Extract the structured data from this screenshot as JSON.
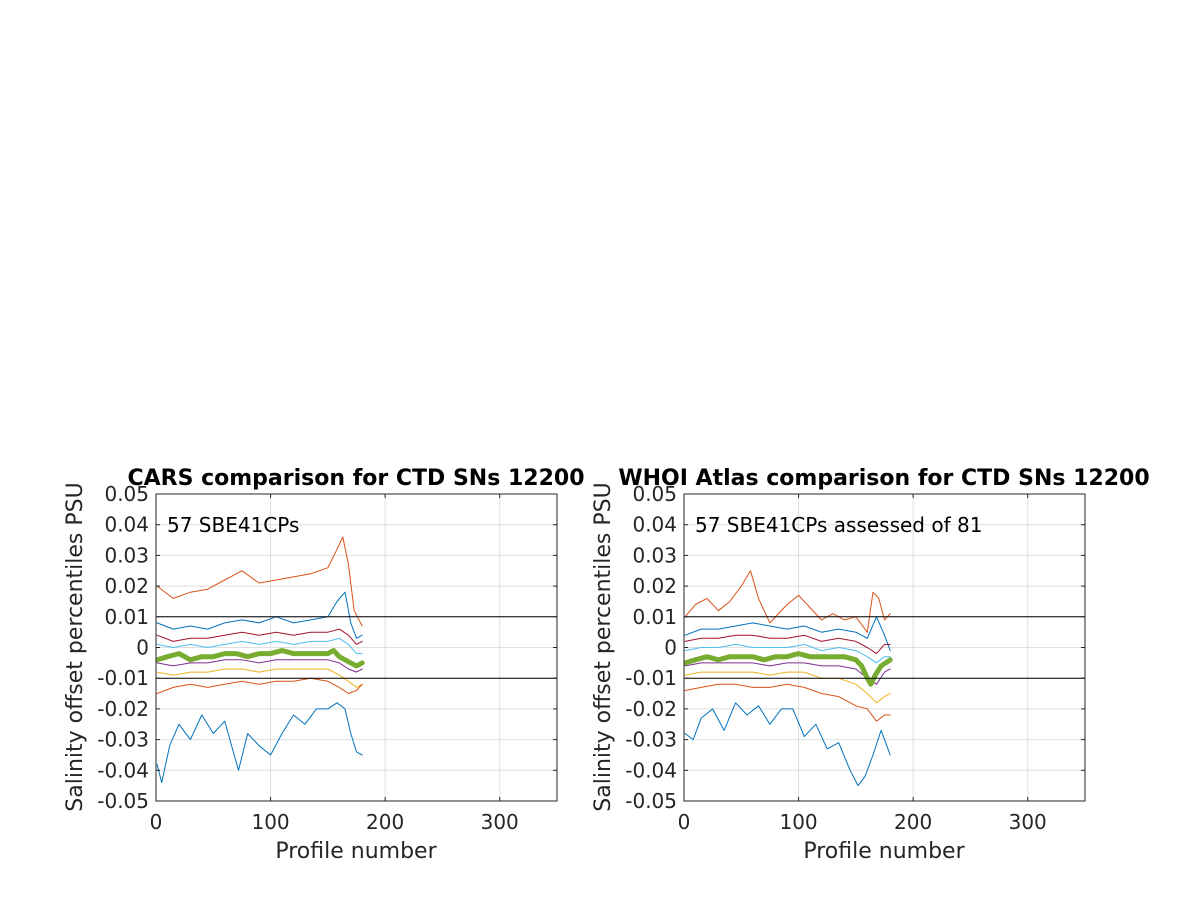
{
  "chart_data": [
    {
      "type": "line",
      "title": "CARS comparison for CTD SNs 12200",
      "xlabel": "Profile number",
      "ylabel": "Salinity offset percentiles PSU",
      "annotation": "57 SBE41CPs",
      "xlim": [
        0,
        350
      ],
      "ylim": [
        -0.05,
        0.05
      ],
      "xticks": [
        0,
        100,
        200,
        300
      ],
      "yticks": [
        -0.05,
        -0.04,
        -0.03,
        -0.02,
        -0.01,
        0,
        0.01,
        0.02,
        0.03,
        0.04,
        0.05
      ],
      "xtick_labels": [
        "0",
        "100",
        "200",
        "300"
      ],
      "ytick_labels": [
        "-0.05",
        "-0.04",
        "-0.03",
        "-0.02",
        "-0.01",
        "0",
        "0.01",
        "0.02",
        "0.03",
        "0.04",
        "0.05"
      ],
      "grid": true,
      "reference_lines": [
        0.01,
        -0.01
      ],
      "series": [
        {
          "color": "#D95319",
          "width": 1,
          "x": [
            1,
            15,
            30,
            45,
            60,
            75,
            90,
            105,
            120,
            135,
            150,
            158,
            163,
            168,
            173,
            180
          ],
          "y": [
            0.02,
            0.016,
            0.018,
            0.019,
            0.022,
            0.025,
            0.021,
            0.022,
            0.023,
            0.024,
            0.026,
            0.032,
            0.036,
            0.027,
            0.012,
            0.007
          ]
        },
        {
          "color": "#0072BD",
          "width": 1,
          "x": [
            1,
            15,
            30,
            45,
            60,
            75,
            90,
            105,
            120,
            135,
            150,
            158,
            165,
            170,
            175,
            180
          ],
          "y": [
            0.008,
            0.006,
            0.007,
            0.006,
            0.008,
            0.009,
            0.008,
            0.01,
            0.008,
            0.009,
            0.01,
            0.015,
            0.018,
            0.008,
            0.003,
            0.004
          ]
        },
        {
          "color": "#A2142F",
          "width": 1,
          "x": [
            1,
            15,
            30,
            45,
            60,
            75,
            90,
            105,
            120,
            135,
            150,
            160,
            168,
            175,
            180
          ],
          "y": [
            0.004,
            0.002,
            0.003,
            0.003,
            0.004,
            0.005,
            0.004,
            0.005,
            0.004,
            0.005,
            0.005,
            0.006,
            0.004,
            0.001,
            0.002
          ]
        },
        {
          "color": "#4DBEEE",
          "width": 1,
          "x": [
            1,
            15,
            30,
            45,
            60,
            75,
            90,
            105,
            120,
            135,
            150,
            160,
            168,
            175,
            180
          ],
          "y": [
            0.001,
            0.0,
            0.001,
            0.0,
            0.001,
            0.002,
            0.001,
            0.002,
            0.001,
            0.002,
            0.002,
            0.003,
            0.001,
            -0.002,
            -0.002
          ]
        },
        {
          "color": "#7E2F8E",
          "width": 1,
          "x": [
            1,
            15,
            30,
            45,
            60,
            75,
            90,
            105,
            120,
            135,
            150,
            160,
            168,
            175,
            180
          ],
          "y": [
            -0.005,
            -0.006,
            -0.005,
            -0.005,
            -0.004,
            -0.004,
            -0.005,
            -0.004,
            -0.004,
            -0.004,
            -0.004,
            -0.005,
            -0.007,
            -0.008,
            -0.007
          ]
        },
        {
          "color": "#EDB120",
          "width": 1,
          "x": [
            1,
            15,
            30,
            45,
            60,
            75,
            90,
            105,
            120,
            135,
            150,
            160,
            168,
            175,
            180
          ],
          "y": [
            -0.008,
            -0.009,
            -0.008,
            -0.008,
            -0.007,
            -0.007,
            -0.008,
            -0.007,
            -0.007,
            -0.007,
            -0.007,
            -0.009,
            -0.011,
            -0.013,
            -0.012
          ]
        },
        {
          "color": "#D95319",
          "width": 1,
          "x": [
            1,
            15,
            30,
            45,
            60,
            75,
            90,
            105,
            120,
            135,
            150,
            160,
            168,
            175,
            180
          ],
          "y": [
            -0.015,
            -0.013,
            -0.012,
            -0.013,
            -0.012,
            -0.011,
            -0.012,
            -0.011,
            -0.011,
            -0.01,
            -0.011,
            -0.013,
            -0.015,
            -0.014,
            -0.012
          ]
        },
        {
          "color": "#0072BD",
          "width": 1,
          "x": [
            1,
            5,
            12,
            20,
            30,
            40,
            50,
            60,
            72,
            80,
            90,
            100,
            110,
            120,
            130,
            140,
            150,
            158,
            165,
            170,
            175,
            180
          ],
          "y": [
            -0.038,
            -0.044,
            -0.032,
            -0.025,
            -0.03,
            -0.022,
            -0.028,
            -0.024,
            -0.04,
            -0.028,
            -0.032,
            -0.035,
            -0.028,
            -0.022,
            -0.025,
            -0.02,
            -0.02,
            -0.018,
            -0.02,
            -0.028,
            -0.034,
            -0.035
          ]
        },
        {
          "color": "#77AC30",
          "width": 5,
          "x": [
            1,
            10,
            20,
            30,
            40,
            50,
            60,
            70,
            80,
            90,
            100,
            110,
            120,
            130,
            140,
            150,
            155,
            160,
            165,
            170,
            175,
            180
          ],
          "y": [
            -0.004,
            -0.003,
            -0.002,
            -0.004,
            -0.003,
            -0.003,
            -0.002,
            -0.002,
            -0.003,
            -0.002,
            -0.002,
            -0.001,
            -0.002,
            -0.002,
            -0.002,
            -0.002,
            -0.001,
            -0.003,
            -0.004,
            -0.005,
            -0.006,
            -0.005
          ]
        }
      ]
    },
    {
      "type": "line",
      "title": "WHOI Atlas comparison for CTD SNs 12200",
      "xlabel": "Profile number",
      "ylabel": "Salinity offset percentiles PSU",
      "annotation": "57 SBE41CPs assessed of 81",
      "xlim": [
        0,
        350
      ],
      "ylim": [
        -0.05,
        0.05
      ],
      "xticks": [
        0,
        100,
        200,
        300
      ],
      "yticks": [
        -0.05,
        -0.04,
        -0.03,
        -0.02,
        -0.01,
        0,
        0.01,
        0.02,
        0.03,
        0.04,
        0.05
      ],
      "xtick_labels": [
        "0",
        "100",
        "200",
        "300"
      ],
      "ytick_labels": [
        "-0.05",
        "-0.04",
        "-0.03",
        "-0.02",
        "-0.01",
        "0",
        "0.01",
        "0.02",
        "0.03",
        "0.04",
        "0.05"
      ],
      "grid": true,
      "reference_lines": [
        0.01,
        -0.01
      ],
      "series": [
        {
          "color": "#D95319",
          "width": 1,
          "x": [
            1,
            10,
            20,
            30,
            40,
            50,
            58,
            65,
            75,
            90,
            100,
            110,
            120,
            130,
            140,
            150,
            160,
            165,
            170,
            175,
            180
          ],
          "y": [
            0.01,
            0.014,
            0.016,
            0.012,
            0.015,
            0.02,
            0.025,
            0.016,
            0.008,
            0.014,
            0.017,
            0.013,
            0.009,
            0.011,
            0.009,
            0.01,
            0.005,
            0.018,
            0.016,
            0.009,
            0.011
          ]
        },
        {
          "color": "#0072BD",
          "width": 1,
          "x": [
            1,
            15,
            30,
            45,
            60,
            75,
            90,
            105,
            120,
            135,
            150,
            160,
            168,
            175,
            180
          ],
          "y": [
            0.004,
            0.006,
            0.006,
            0.007,
            0.008,
            0.007,
            0.006,
            0.007,
            0.005,
            0.006,
            0.005,
            0.003,
            0.01,
            0.004,
            -0.001
          ]
        },
        {
          "color": "#A2142F",
          "width": 1,
          "x": [
            1,
            15,
            30,
            45,
            60,
            75,
            90,
            105,
            120,
            135,
            150,
            160,
            168,
            175,
            180
          ],
          "y": [
            0.002,
            0.003,
            0.003,
            0.004,
            0.004,
            0.003,
            0.003,
            0.004,
            0.002,
            0.003,
            0.002,
            0.0,
            -0.002,
            0.001,
            0.001
          ]
        },
        {
          "color": "#4DBEEE",
          "width": 1,
          "x": [
            1,
            15,
            30,
            45,
            60,
            75,
            90,
            105,
            120,
            135,
            150,
            160,
            168,
            175,
            180
          ],
          "y": [
            -0.001,
            0.0,
            0.0,
            0.001,
            0.0,
            0.0,
            0.0,
            0.001,
            -0.001,
            0.0,
            -0.001,
            -0.003,
            -0.005,
            -0.003,
            -0.003
          ]
        },
        {
          "color": "#7E2F8E",
          "width": 1,
          "x": [
            1,
            15,
            30,
            45,
            60,
            75,
            90,
            105,
            120,
            135,
            150,
            160,
            168,
            175,
            180
          ],
          "y": [
            -0.006,
            -0.005,
            -0.005,
            -0.005,
            -0.005,
            -0.006,
            -0.005,
            -0.005,
            -0.006,
            -0.006,
            -0.007,
            -0.01,
            -0.012,
            -0.008,
            -0.007
          ]
        },
        {
          "color": "#EDB120",
          "width": 1,
          "x": [
            1,
            15,
            30,
            45,
            60,
            75,
            90,
            105,
            120,
            135,
            150,
            160,
            168,
            175,
            180
          ],
          "y": [
            -0.009,
            -0.008,
            -0.008,
            -0.008,
            -0.008,
            -0.009,
            -0.008,
            -0.008,
            -0.01,
            -0.01,
            -0.012,
            -0.015,
            -0.018,
            -0.016,
            -0.015
          ]
        },
        {
          "color": "#D95319",
          "width": 1,
          "x": [
            1,
            15,
            30,
            45,
            60,
            75,
            90,
            105,
            120,
            135,
            150,
            160,
            168,
            175,
            180
          ],
          "y": [
            -0.014,
            -0.013,
            -0.012,
            -0.012,
            -0.013,
            -0.013,
            -0.012,
            -0.013,
            -0.015,
            -0.016,
            -0.019,
            -0.02,
            -0.024,
            -0.022,
            -0.022
          ]
        },
        {
          "color": "#0072BD",
          "width": 1,
          "x": [
            1,
            8,
            15,
            25,
            35,
            45,
            55,
            65,
            75,
            85,
            95,
            105,
            115,
            125,
            135,
            145,
            152,
            158,
            165,
            172,
            180
          ],
          "y": [
            -0.028,
            -0.03,
            -0.023,
            -0.02,
            -0.027,
            -0.018,
            -0.022,
            -0.019,
            -0.025,
            -0.02,
            -0.02,
            -0.029,
            -0.025,
            -0.033,
            -0.031,
            -0.04,
            -0.045,
            -0.042,
            -0.035,
            -0.027,
            -0.035
          ]
        },
        {
          "color": "#77AC30",
          "width": 5,
          "x": [
            1,
            10,
            20,
            30,
            40,
            50,
            60,
            70,
            80,
            90,
            100,
            110,
            120,
            130,
            140,
            150,
            155,
            160,
            163,
            167,
            172,
            180
          ],
          "y": [
            -0.005,
            -0.004,
            -0.003,
            -0.004,
            -0.003,
            -0.003,
            -0.003,
            -0.004,
            -0.003,
            -0.003,
            -0.002,
            -0.003,
            -0.003,
            -0.003,
            -0.003,
            -0.004,
            -0.006,
            -0.01,
            -0.012,
            -0.009,
            -0.006,
            -0.004
          ]
        }
      ]
    }
  ]
}
